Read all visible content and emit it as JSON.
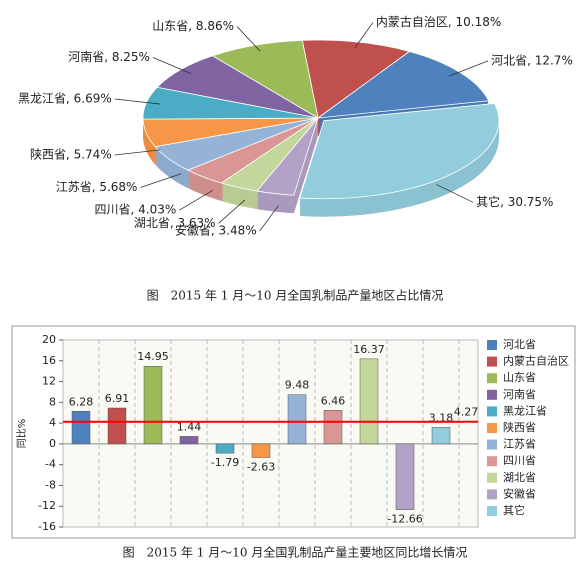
{
  "chart_data": [
    {
      "type": "pie",
      "title": "图　2015 年 1 月～10 月全国乳制品产量地区占比情况",
      "categories": [
        "内蒙古自治区",
        "河北省",
        "其它",
        "安徽省",
        "湖北省",
        "四川省",
        "江苏省",
        "陕西省",
        "黑龙江省",
        "河南省",
        "山东省"
      ],
      "values": [
        10.18,
        12.7,
        30.75,
        3.48,
        3.63,
        4.03,
        5.68,
        5.74,
        6.69,
        8.25,
        8.86
      ],
      "value_labels": [
        "内蒙古自治区, 10.18%",
        "河北省, 12.7%",
        "其它, 30.75%",
        "安徽省, 3.48%",
        "湖北省, 3.63%",
        "四川省, 4.03%",
        "江苏省, 5.68%",
        "陕西省, 5.74%",
        "黑龙江省, 6.69%",
        "河南省, 8.25%",
        "山东省, 8.86%"
      ],
      "colors": [
        "#c0504d",
        "#4f81bd",
        "#93cddd",
        "#b3a2c7",
        "#c3d69b",
        "#d99694",
        "#95b3d7",
        "#f79646",
        "#4bacc6",
        "#8064a2",
        "#9bbb59"
      ]
    },
    {
      "type": "bar",
      "title": "图　2015 年 1 月～10 月全国乳制品产量主要地区同比增长情况",
      "ylabel": "同比%",
      "categories": [
        "河北省",
        "内蒙古自治区",
        "山东省",
        "河南省",
        "黑龙江省",
        "陕西省",
        "江苏省",
        "四川省",
        "湖北省",
        "安徽省",
        "其它"
      ],
      "values": [
        6.28,
        6.91,
        14.95,
        1.44,
        -1.79,
        -2.63,
        9.48,
        6.46,
        16.37,
        -12.66,
        3.18
      ],
      "colors": [
        "#4f81bd",
        "#c0504d",
        "#9bbb59",
        "#8064a2",
        "#4bacc6",
        "#f79646",
        "#95b3d7",
        "#d99694",
        "#c3d69b",
        "#b3a2c7",
        "#93cddd"
      ],
      "reference_line": 4.27,
      "reference_color": "#ff0000",
      "ylim": [
        -16,
        20
      ],
      "yticks": [
        -16,
        -12,
        -8,
        -4,
        0,
        4,
        8,
        12,
        16,
        20
      ],
      "legend": "right"
    }
  ]
}
